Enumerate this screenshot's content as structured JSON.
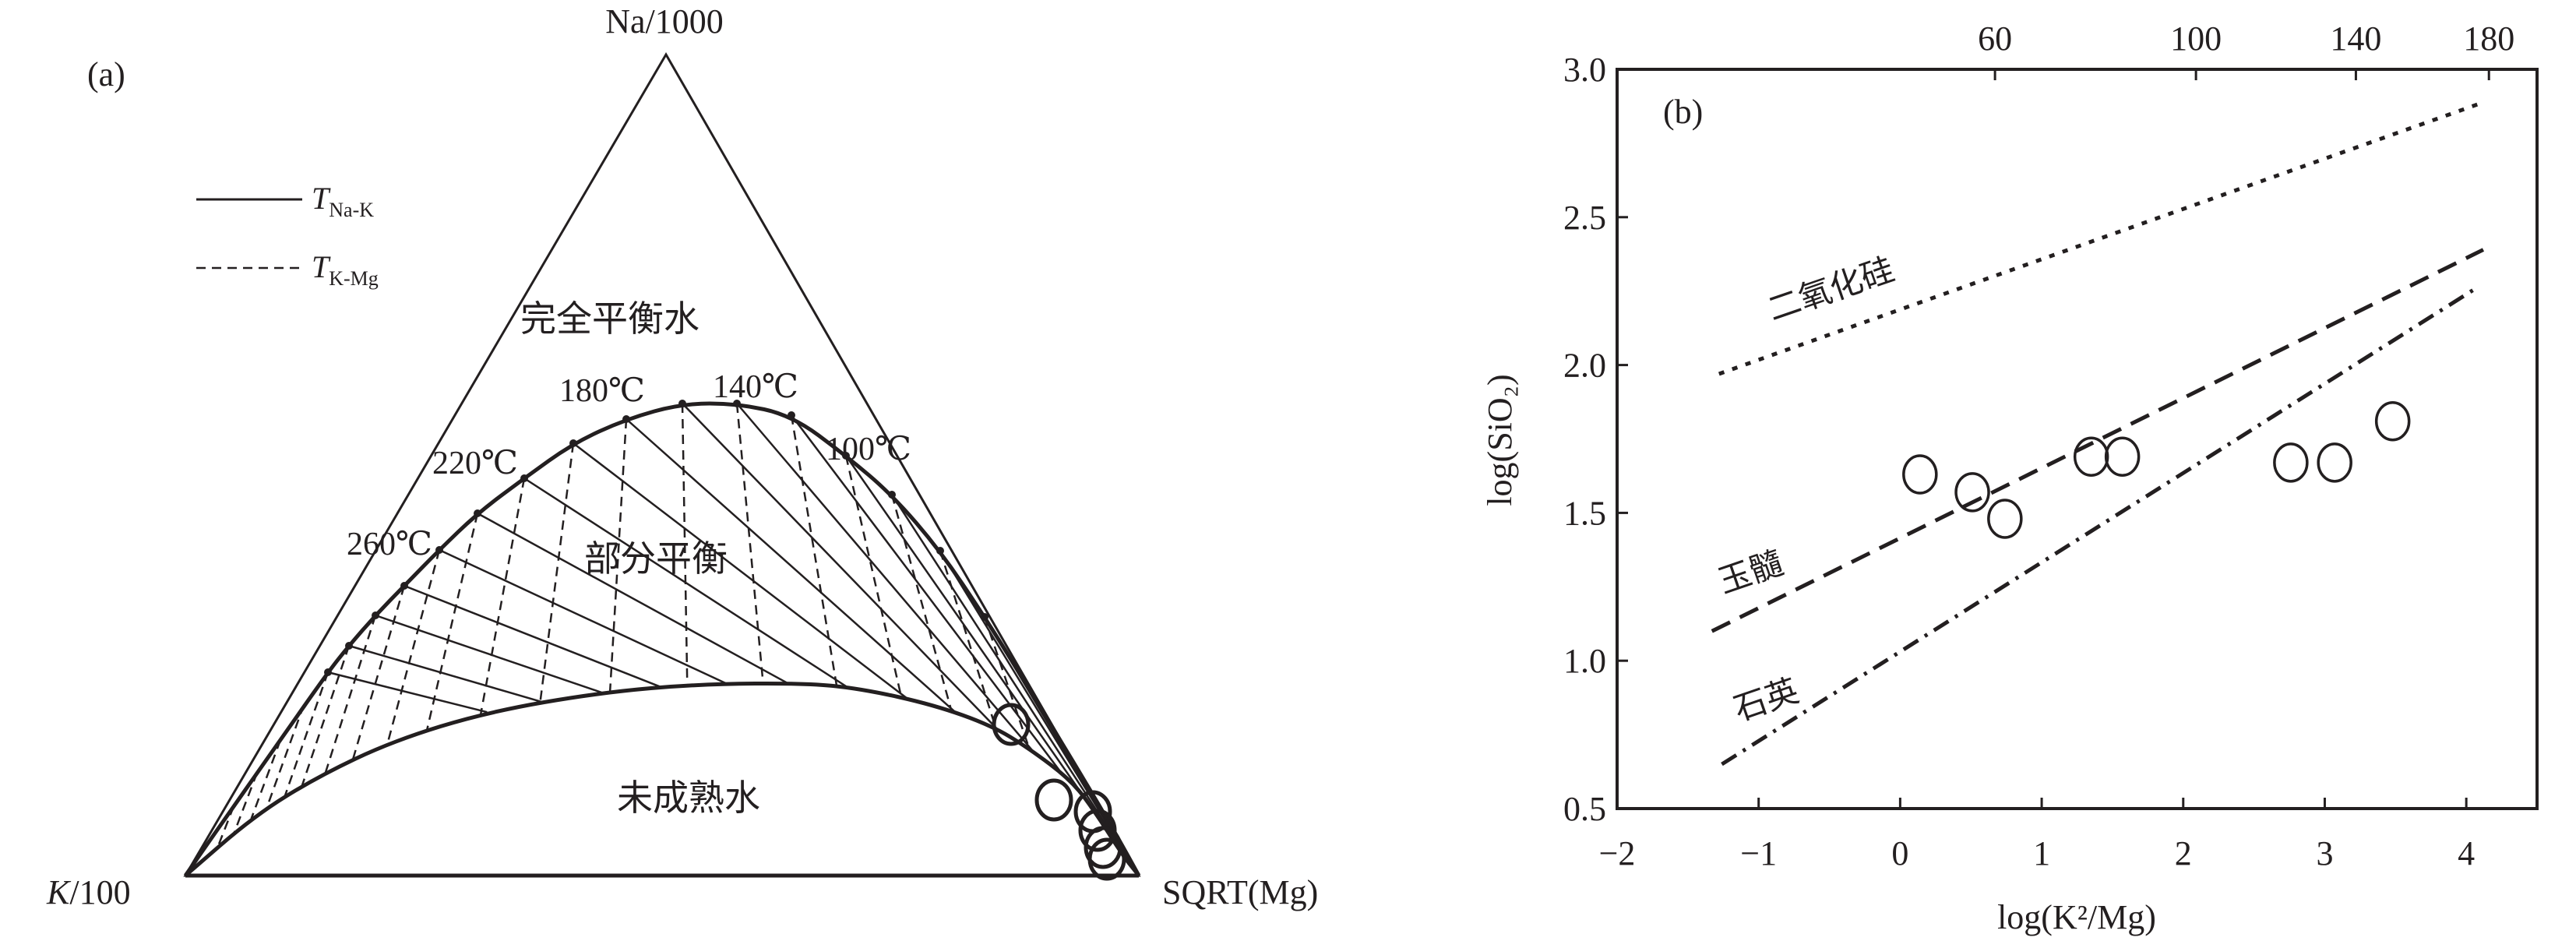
{
  "colors": {
    "ink": "#231f20",
    "background": "#ffffff"
  },
  "panel_a": {
    "label": "(a)",
    "vertex_top": "Na/1000",
    "vertex_left_italic": "K",
    "vertex_left_rest": "/100",
    "vertex_right": "SQRT(Mg)",
    "legend": [
      {
        "symbol": "T",
        "subscript": "Na-K",
        "style": "solid"
      },
      {
        "symbol": "T",
        "subscript": "K-Mg",
        "style": "dashed"
      }
    ],
    "regions": {
      "full": "完全平衡水",
      "partial": "部分平衡",
      "immature": "未成熟水"
    },
    "temperature_labels": [
      "260℃",
      "220℃",
      "180℃",
      "140℃",
      "100℃"
    ],
    "marker": "open-circle"
  },
  "chart_data": {
    "type": "scatter",
    "panel_label": "(b)",
    "xlabel": "log(K²/Mg)",
    "ylabel": "log(SiO₂)",
    "xlim": [
      -2,
      4.5
    ],
    "ylim": [
      0.5,
      3.0
    ],
    "x_ticks": [
      "−2",
      "−1",
      "0",
      "1",
      "2",
      "3",
      "4"
    ],
    "x_tick_values": [
      -2,
      -1,
      0,
      1,
      2,
      3,
      4
    ],
    "y_ticks": [
      "0.5",
      "1.0",
      "1.5",
      "2.0",
      "2.5",
      "3.0"
    ],
    "y_tick_values": [
      0.5,
      1.0,
      1.5,
      2.0,
      2.5,
      3.0
    ],
    "top_axis_ticks": [
      "60",
      "100",
      "140",
      "180"
    ],
    "top_axis_tick_positions": [
      0.67,
      2.09,
      3.22,
      4.16
    ],
    "grid": false,
    "marker": "open-circle",
    "points": [
      {
        "x": 0.14,
        "y": 1.63
      },
      {
        "x": 0.51,
        "y": 1.57
      },
      {
        "x": 0.74,
        "y": 1.48
      },
      {
        "x": 1.35,
        "y": 1.69
      },
      {
        "x": 1.57,
        "y": 1.69
      },
      {
        "x": 2.76,
        "y": 1.67
      },
      {
        "x": 3.07,
        "y": 1.67
      },
      {
        "x": 3.48,
        "y": 1.81
      }
    ],
    "lines": [
      {
        "name": "二氧化硅",
        "style": "dotted",
        "x": [
          -1.28,
          4.13
        ],
        "y": [
          1.97,
          2.89
        ]
      },
      {
        "name": "玉髓",
        "style": "dashed",
        "x": [
          -1.33,
          4.12
        ],
        "y": [
          1.1,
          2.39
        ]
      },
      {
        "name": "石英",
        "style": "dash-dot",
        "x": [
          -1.26,
          4.07
        ],
        "y": [
          0.65,
          2.26
        ]
      }
    ]
  }
}
